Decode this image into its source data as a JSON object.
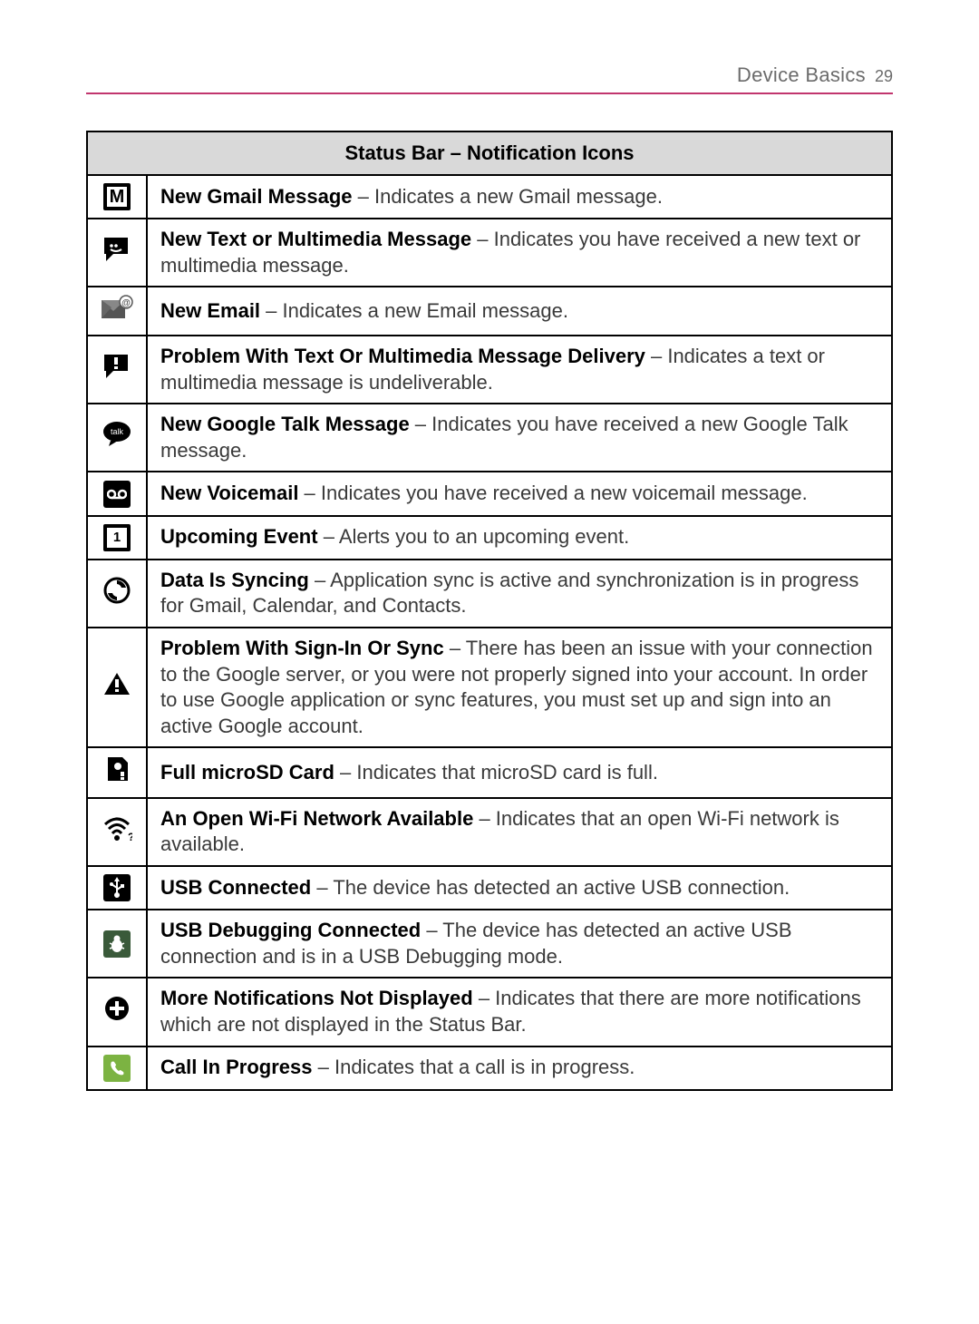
{
  "header": {
    "section": "Device Basics",
    "page_number": "29"
  },
  "table": {
    "title": "Status Bar – Notification Icons",
    "rows": [
      {
        "icon": "gmail",
        "title": "New Gmail Message",
        "body": " – Indicates a new Gmail message."
      },
      {
        "icon": "sms",
        "title": "New Text or Multimedia Message",
        "body": " – Indicates you have received a new text or multimedia message."
      },
      {
        "icon": "email",
        "title": "New Email",
        "body": " – Indicates a new Email message."
      },
      {
        "icon": "sms-error",
        "title": "Problem With Text Or Multimedia Message Delivery",
        "body": " – Indicates a text or multimedia message is undeliverable."
      },
      {
        "icon": "gtalk",
        "title": "New Google Talk Message",
        "body": " – Indicates you have received a new Google Talk message."
      },
      {
        "icon": "voicemail",
        "title": "New Voicemail",
        "body": " – Indicates you have received a new voicemail message."
      },
      {
        "icon": "event",
        "title": "Upcoming Event",
        "body": " – Alerts you to an upcoming event."
      },
      {
        "icon": "sync",
        "title": "Data Is Syncing",
        "body": " – Application sync is active and synchronization is in progress for Gmail, Calendar, and Contacts."
      },
      {
        "icon": "warning",
        "title": "Problem With Sign-In Or Sync",
        "body": " – There has been an issue with your connection to the Google server, or you were not properly signed into your account. In order to use Google application or sync features, you must set up and sign into an active Google account."
      },
      {
        "icon": "sd-full",
        "title": "Full microSD Card",
        "body": " – Indicates that microSD card is full."
      },
      {
        "icon": "wifi-open",
        "title": "An Open Wi-Fi Network Available",
        "body": " – Indicates that an open Wi-Fi network is available."
      },
      {
        "icon": "usb",
        "title": "USB Connected",
        "body": " – The device has detected an active USB connection."
      },
      {
        "icon": "usb-debug",
        "title": "USB Debugging Connected",
        "body": " – The device has detected an active USB connection and is in a USB Debugging mode."
      },
      {
        "icon": "more",
        "title": "More Notifications Not Displayed",
        "body": " – Indicates that there are more notifications which are not displayed in the Status Bar."
      },
      {
        "icon": "call",
        "title": "Call In Progress",
        "body": " – Indicates that a call is in progress."
      }
    ]
  },
  "colors": {
    "accent": "#c1356e",
    "header_bg": "#d9d9d9",
    "text": "#3a3a3a",
    "border": "#000000"
  }
}
